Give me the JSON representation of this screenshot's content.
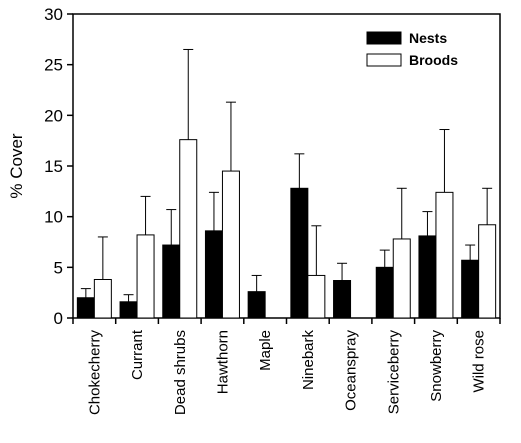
{
  "chart_data": {
    "type": "bar",
    "title": "",
    "xlabel": "",
    "ylabel": "% Cover",
    "ylim": [
      0,
      30
    ],
    "yticks": [
      0,
      5,
      10,
      15,
      20,
      25,
      30
    ],
    "grid": false,
    "legend_position": "top-right",
    "categories": [
      "Chokecherry",
      "Currant",
      "Dead shrubs",
      "Hawthorn",
      "Maple",
      "Ninebark",
      "Oceanspray",
      "Serviceberry",
      "Snowberry",
      "Wild rose"
    ],
    "series": [
      {
        "name": "Nests",
        "color": "#000000",
        "values": [
          2.0,
          1.6,
          7.2,
          8.6,
          2.6,
          12.8,
          3.7,
          5.0,
          8.1,
          5.7
        ],
        "error_upper": [
          2.9,
          2.3,
          10.7,
          12.4,
          4.2,
          16.2,
          5.4,
          6.7,
          10.5,
          7.2
        ]
      },
      {
        "name": "Broods",
        "color": "#ffffff",
        "values": [
          3.8,
          8.2,
          17.6,
          14.5,
          0,
          4.2,
          0,
          7.8,
          12.4,
          9.2
        ],
        "error_upper": [
          8.0,
          12.0,
          26.5,
          21.3,
          0,
          9.1,
          0,
          12.8,
          18.6,
          12.8
        ]
      }
    ]
  }
}
